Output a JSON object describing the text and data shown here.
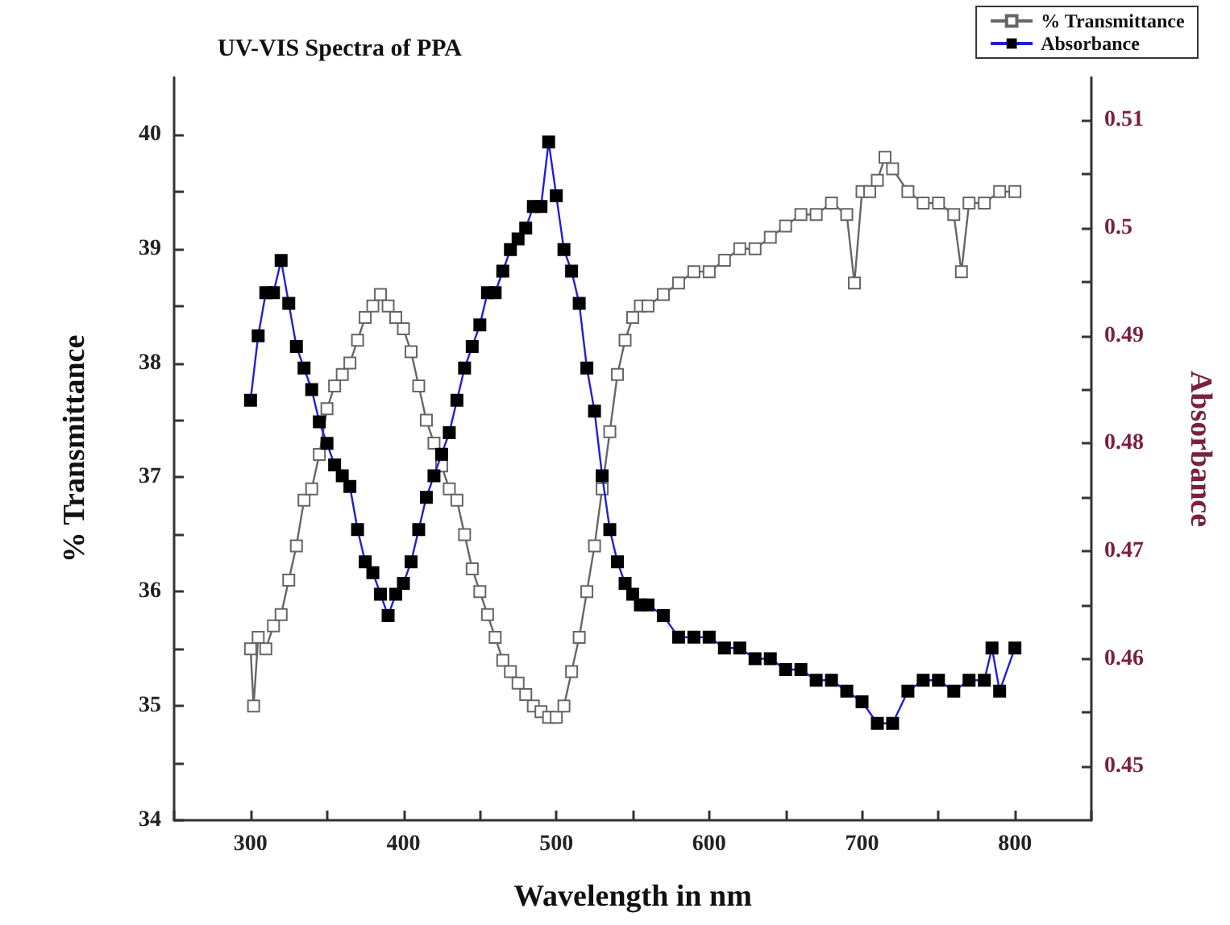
{
  "chart_data": {
    "type": "line",
    "title": "UV-VIS Spectra of PPA",
    "xlabel": "Wavelength in nm",
    "ylabel": "% Transmittance",
    "y2label": "Absorbance",
    "xlim": [
      250,
      850
    ],
    "xticks": [
      {
        "value": 250,
        "label": null
      },
      300,
      {
        "value": 350,
        "label": null
      },
      400,
      {
        "value": 450,
        "label": null
      },
      500,
      {
        "value": 550,
        "label": null
      },
      600,
      {
        "value": 650,
        "label": null
      },
      700,
      {
        "value": 750,
        "label": null
      },
      800,
      {
        "value": 850,
        "label": null
      }
    ],
    "ylim": [
      34,
      40.5
    ],
    "yticks": [
      34,
      {
        "value": 34.5,
        "label": null
      },
      35,
      {
        "value": 35.5,
        "label": null
      },
      36,
      {
        "value": 36.5,
        "label": null
      },
      37,
      {
        "value": 37.5,
        "label": null
      },
      38,
      {
        "value": 38.5,
        "label": null
      },
      39,
      {
        "value": 39.5,
        "label": null
      },
      40
    ],
    "y2lim": [
      0.445,
      0.514
    ],
    "y2ticks": [
      0.45,
      {
        "value": 0.455,
        "label": null
      },
      0.46,
      {
        "value": 0.465,
        "label": null
      },
      0.47,
      {
        "value": 0.475,
        "label": null
      },
      0.48,
      {
        "value": 0.485,
        "label": null
      },
      0.49,
      {
        "value": 0.495,
        "label": null
      },
      0.5,
      {
        "value": 0.505,
        "label": null
      },
      0.51
    ],
    "marker": "square",
    "legend": "top right",
    "grid": false,
    "series": [
      {
        "name": "% Transmittance",
        "color": "#666666",
        "x": [
          300,
          302,
          305,
          310,
          315,
          320,
          325,
          330,
          335,
          340,
          345,
          350,
          355,
          360,
          365,
          370,
          375,
          380,
          385,
          390,
          395,
          400,
          405,
          410,
          415,
          420,
          425,
          430,
          435,
          440,
          445,
          450,
          455,
          460,
          465,
          470,
          475,
          480,
          485,
          490,
          495,
          500,
          505,
          510,
          515,
          520,
          525,
          530,
          535,
          540,
          545,
          550,
          555,
          560,
          570,
          580,
          590,
          600,
          610,
          620,
          630,
          640,
          650,
          660,
          670,
          680,
          690,
          695,
          700,
          705,
          710,
          715,
          720,
          730,
          740,
          750,
          760,
          765,
          770,
          780,
          790,
          800
        ],
        "values": [
          35.5,
          35.0,
          35.6,
          35.5,
          35.7,
          35.8,
          36.1,
          36.4,
          36.8,
          36.9,
          37.2,
          37.6,
          37.8,
          37.9,
          38.0,
          38.2,
          38.4,
          38.5,
          38.6,
          38.5,
          38.4,
          38.3,
          38.1,
          37.8,
          37.5,
          37.3,
          37.1,
          36.9,
          36.8,
          36.5,
          36.2,
          36.0,
          35.8,
          35.6,
          35.4,
          35.3,
          35.2,
          35.1,
          35.0,
          34.95,
          34.9,
          34.9,
          35.0,
          35.3,
          35.6,
          36.0,
          36.4,
          36.9,
          37.4,
          37.9,
          38.2,
          38.4,
          38.5,
          38.5,
          38.6,
          38.7,
          38.8,
          38.8,
          38.9,
          39.0,
          39.0,
          39.1,
          39.2,
          39.3,
          39.3,
          39.4,
          39.3,
          38.7,
          39.5,
          39.5,
          39.6,
          39.8,
          39.7,
          39.5,
          39.4,
          39.4,
          39.3,
          38.8,
          39.4,
          39.4,
          39.5,
          39.5
        ]
      },
      {
        "name": "Absorbance",
        "color": "#1f1fd6",
        "axis": "y2",
        "x": [
          300,
          305,
          310,
          315,
          320,
          325,
          330,
          335,
          340,
          345,
          350,
          355,
          360,
          365,
          370,
          375,
          380,
          385,
          390,
          395,
          400,
          405,
          410,
          415,
          420,
          425,
          430,
          435,
          440,
          445,
          450,
          455,
          460,
          465,
          470,
          475,
          480,
          485,
          490,
          495,
          500,
          505,
          510,
          515,
          520,
          525,
          530,
          535,
          540,
          545,
          550,
          555,
          560,
          570,
          580,
          590,
          600,
          610,
          620,
          630,
          640,
          650,
          660,
          670,
          680,
          690,
          700,
          710,
          720,
          730,
          740,
          750,
          760,
          770,
          780,
          785,
          790,
          800
        ],
        "values": [
          0.484,
          0.49,
          0.494,
          0.494,
          0.497,
          0.493,
          0.489,
          0.487,
          0.485,
          0.482,
          0.48,
          0.478,
          0.477,
          0.476,
          0.472,
          0.469,
          0.468,
          0.466,
          0.464,
          0.466,
          0.467,
          0.469,
          0.472,
          0.475,
          0.477,
          0.479,
          0.481,
          0.484,
          0.487,
          0.489,
          0.491,
          0.494,
          0.494,
          0.496,
          0.498,
          0.499,
          0.5,
          0.502,
          0.502,
          0.508,
          0.503,
          0.498,
          0.496,
          0.493,
          0.487,
          0.483,
          0.477,
          0.472,
          0.469,
          0.467,
          0.466,
          0.465,
          0.465,
          0.464,
          0.462,
          0.462,
          0.462,
          0.461,
          0.461,
          0.46,
          0.46,
          0.459,
          0.459,
          0.458,
          0.458,
          0.457,
          0.456,
          0.454,
          0.454,
          0.457,
          0.458,
          0.458,
          0.457,
          0.458,
          0.458,
          0.461,
          0.457,
          0.461
        ]
      }
    ]
  }
}
